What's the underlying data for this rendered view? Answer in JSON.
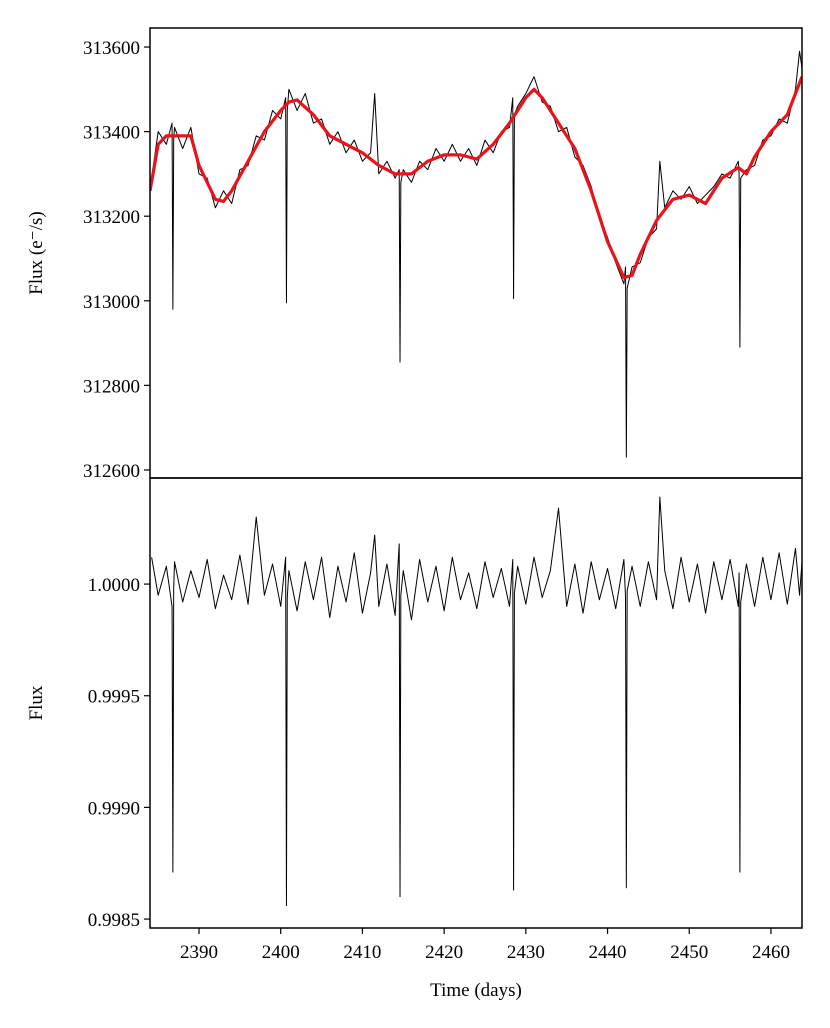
{
  "chart_data": [
    {
      "type": "line",
      "ylabel": "Flux (e⁻/s)",
      "xlim": [
        2384,
        2463.8
      ],
      "ylim": [
        312581,
        313645
      ],
      "yticks": [
        312600,
        312800,
        313000,
        313200,
        313400,
        313600
      ],
      "series": [
        {
          "color": "#000000",
          "x": [
            2384.2,
            2385,
            2386,
            2386.7,
            2386.8,
            2386.9,
            2387,
            2388,
            2389,
            2390,
            2391,
            2392,
            2393,
            2394,
            2395,
            2396,
            2397,
            2398,
            2399,
            2400,
            2400.6,
            2400.7,
            2400.8,
            2401,
            2402,
            2403,
            2404,
            2405,
            2406,
            2407,
            2408,
            2409,
            2410,
            2411,
            2411.5,
            2412,
            2413,
            2414,
            2414.5,
            2414.6,
            2414.7,
            2415,
            2416,
            2417,
            2418,
            2419,
            2420,
            2421,
            2422,
            2423,
            2424,
            2425,
            2426,
            2427,
            2428,
            2428.4,
            2428.5,
            2428.6,
            2429,
            2430,
            2431,
            2432,
            2433,
            2434,
            2435,
            2436,
            2437,
            2438,
            2439,
            2440,
            2441,
            2442,
            2442.2,
            2442.3,
            2442.4,
            2443,
            2444,
            2445,
            2446,
            2446.4,
            2447,
            2448,
            2449,
            2450,
            2451,
            2452,
            2453,
            2454,
            2455,
            2456,
            2456.1,
            2456.2,
            2456.3,
            2457,
            2458,
            2459,
            2460,
            2461,
            2462,
            2463,
            2463.5,
            2463.8
          ],
          "values": [
            313290,
            313400,
            313370,
            313420,
            312980,
            313380,
            313410,
            313360,
            313410,
            313300,
            313290,
            313220,
            313260,
            313230,
            313310,
            313320,
            313390,
            313380,
            313450,
            313430,
            313480,
            312995,
            313450,
            313500,
            313450,
            313490,
            313420,
            313430,
            313370,
            313400,
            313350,
            313380,
            313330,
            313350,
            313490,
            313300,
            313330,
            313290,
            313310,
            312855,
            313280,
            313310,
            313280,
            313330,
            313310,
            313360,
            313330,
            313370,
            313330,
            313360,
            313320,
            313380,
            313350,
            313400,
            313410,
            313480,
            313005,
            313440,
            313460,
            313490,
            313530,
            313470,
            313460,
            313400,
            313410,
            313340,
            313320,
            313270,
            313200,
            313150,
            313090,
            313040,
            313080,
            312630,
            313030,
            313080,
            313090,
            313150,
            313170,
            313330,
            313220,
            313260,
            313240,
            313270,
            313230,
            313250,
            313270,
            313300,
            313290,
            313330,
            313300,
            312890,
            313290,
            313310,
            313320,
            313380,
            313390,
            313430,
            313420,
            313500,
            313590,
            313550
          ]
        },
        {
          "color": "#e8141c",
          "x": [
            2384,
            2385,
            2386,
            2388,
            2389,
            2390,
            2392,
            2393,
            2394,
            2396,
            2398,
            2400,
            2401,
            2402,
            2404,
            2406,
            2408,
            2410,
            2412,
            2414,
            2416,
            2418,
            2420,
            2422,
            2424,
            2426,
            2428,
            2430,
            2431,
            2432,
            2434,
            2436,
            2438,
            2440,
            2442,
            2443,
            2444,
            2446,
            2448,
            2450,
            2452,
            2454,
            2456,
            2457,
            2458,
            2460,
            2462,
            2463.8
          ],
          "values": [
            313260,
            313370,
            313390,
            313390,
            313390,
            313320,
            313240,
            313235,
            313260,
            313330,
            313400,
            313450,
            313470,
            313475,
            313440,
            313390,
            313370,
            313350,
            313320,
            313300,
            313300,
            313330,
            313345,
            313345,
            313335,
            313370,
            313420,
            313480,
            313500,
            313480,
            313420,
            313360,
            313260,
            313140,
            313055,
            313060,
            313110,
            313190,
            313240,
            313250,
            313230,
            313290,
            313315,
            313300,
            313340,
            313400,
            313440,
            313530
          ]
        }
      ]
    },
    {
      "type": "line",
      "ylabel": "Flux",
      "xlabel": "Time (days)",
      "xlim": [
        2384,
        2463.8
      ],
      "ylim": [
        0.99846,
        1.000475
      ],
      "xticks": [
        2390,
        2400,
        2410,
        2420,
        2430,
        2440,
        2450,
        2460
      ],
      "yticks": [
        {
          "value": 1.0,
          "label": "1.0000"
        },
        {
          "value": 0.9995,
          "label": "0.9995"
        },
        {
          "value": 0.999,
          "label": "0.9990"
        },
        {
          "value": 0.9985,
          "label": "0.9985"
        }
      ],
      "series": [
        {
          "color": "#000000",
          "x": [
            2384.2,
            2385,
            2386,
            2386.7,
            2386.8,
            2386.9,
            2387,
            2388,
            2389,
            2390,
            2391,
            2392,
            2393,
            2394,
            2395,
            2396,
            2397,
            2398,
            2399,
            2400,
            2400.6,
            2400.7,
            2400.8,
            2401,
            2402,
            2403,
            2404,
            2405,
            2406,
            2407,
            2408,
            2409,
            2410,
            2411,
            2411.5,
            2412,
            2413,
            2414,
            2414.5,
            2414.6,
            2414.7,
            2415,
            2416,
            2417,
            2418,
            2419,
            2420,
            2421,
            2422,
            2423,
            2424,
            2425,
            2426,
            2427,
            2428,
            2428.4,
            2428.5,
            2428.6,
            2429,
            2430,
            2431,
            2432,
            2433,
            2434,
            2435,
            2436,
            2437,
            2438,
            2439,
            2440,
            2441,
            2442,
            2442.2,
            2442.3,
            2442.4,
            2443,
            2444,
            2445,
            2446,
            2446.4,
            2447,
            2448,
            2449,
            2450,
            2451,
            2452,
            2453,
            2454,
            2455,
            2456,
            2456.1,
            2456.2,
            2456.3,
            2457,
            2458,
            2459,
            2460,
            2461,
            2462,
            2463,
            2463.5,
            2463.8
          ],
          "values": [
            1.00012,
            0.99995,
            1.00008,
            0.9999,
            0.99871,
            0.99998,
            1.0001,
            0.99992,
            1.00006,
            0.99994,
            1.00011,
            0.99989,
            1.00004,
            0.99993,
            1.00013,
            0.99991,
            1.0003,
            0.99995,
            1.00009,
            0.9999,
            1.00012,
            0.99856,
            0.99994,
            1.00006,
            0.99988,
            1.0001,
            0.99993,
            1.00012,
            0.99985,
            1.00008,
            0.99992,
            1.00014,
            0.99987,
            1.00005,
            1.00022,
            0.9999,
            1.00009,
            0.99986,
            1.00018,
            0.9986,
            0.99995,
            1.00006,
            0.99984,
            1.00011,
            0.99992,
            1.00008,
            0.99988,
            1.00012,
            0.99993,
            1.00005,
            0.99989,
            1.0001,
            0.99994,
            1.00007,
            0.9999,
            1.00011,
            0.99863,
            0.99996,
            1.00008,
            0.99991,
            1.00012,
            0.99994,
            1.00006,
            1.00034,
            0.9999,
            1.00009,
            0.99987,
            1.0001,
            0.99993,
            1.00007,
            0.99989,
            1.00011,
            0.99994,
            0.99864,
            0.99997,
            1.00008,
            0.9999,
            1.0001,
            0.99993,
            1.00039,
            1.00006,
            0.99989,
            1.00012,
            0.99992,
            1.00009,
            0.99987,
            1.0001,
            0.99993,
            1.00011,
            0.9999,
            1.00005,
            0.99871,
            0.99992,
            1.00009,
            0.9999,
            1.00012,
            0.99993,
            1.00014,
            0.99991,
            1.00016,
            0.99995,
            1.0001
          ]
        }
      ]
    }
  ]
}
